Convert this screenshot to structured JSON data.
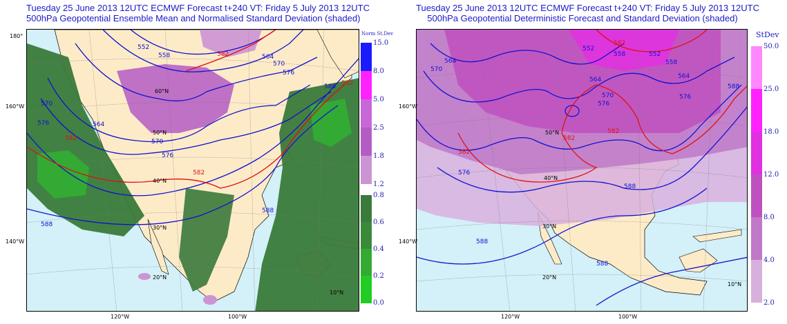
{
  "left_panel": {
    "title_line1": "Tuesday 25 June 2013 12UTC ECMWF Forecast t+240  VT: Friday 5 July 2013 12UTC",
    "title_line2": "500hPa Geopotential Ensemble Mean and Normalised Standard Deviation (shaded)",
    "contour_labels_blue": [
      "552",
      "558",
      "564",
      "570",
      "576",
      "588",
      "570",
      "564",
      "570",
      "576",
      "588",
      "588",
      "576"
    ],
    "contour_labels_red": [
      "582",
      "582",
      "582",
      "582"
    ],
    "lat_labels": [
      "50°N",
      "60°N",
      "40°N",
      "30°N",
      "20°N",
      "10°N"
    ],
    "lon_labels_left": [
      "180°",
      "160°W",
      "140°W"
    ],
    "lon_labels_bottom": [
      "120°W",
      "100°W"
    ],
    "colorbar_title": "Norm St.Dev",
    "colorbar_upper": [
      {
        "label": "15.0",
        "color": "#1a1aff"
      },
      {
        "label": "8.0",
        "color": "#ff22ff"
      },
      {
        "label": "5.0",
        "color": "#c868d8"
      },
      {
        "label": "2.5",
        "color": "#b45cc4"
      },
      {
        "label": "1.8",
        "color": "#cc94d4"
      },
      {
        "label": "1.2",
        "color": "#ffffff"
      }
    ],
    "colorbar_lower": [
      {
        "label": "0.8",
        "color": "#3a7a3a"
      },
      {
        "label": "0.6",
        "color": "#3a8a3a"
      },
      {
        "label": "0.4",
        "color": "#33aa33"
      },
      {
        "label": "0.2",
        "color": "#22cc22"
      },
      {
        "label": "0.0",
        "color": "#00ff00"
      }
    ]
  },
  "right_panel": {
    "title_line1": "Tuesday 25 June 2013 12UTC ECMWF Forecast t+240  VT: Friday 5 July 2013 12UTC",
    "title_line2": "500hPa Geopotential Deterministic Forecast and Standard Deviation (shaded)",
    "contour_labels_blue": [
      "552",
      "558",
      "564",
      "570",
      "576",
      "588",
      "570",
      "564",
      "552",
      "558",
      "564",
      "576",
      "588",
      "576",
      "588",
      "588"
    ],
    "contour_labels_red": [
      "582",
      "582",
      "582",
      "582"
    ],
    "lat_labels": [
      "50°N",
      "40°N",
      "30°N",
      "20°N",
      "10°N"
    ],
    "lon_labels_left": [
      "160°W",
      "140°W"
    ],
    "lon_labels_bottom": [
      "120°W",
      "100°W"
    ],
    "colorbar_title": "StDev",
    "colorbar": [
      {
        "label": "50.0",
        "color": "#ff88ff"
      },
      {
        "label": "25.0",
        "color": "#ff22ff"
      },
      {
        "label": "18.0",
        "color": "#e030e0"
      },
      {
        "label": "12.0",
        "color": "#c050c0"
      },
      {
        "label": "8.0",
        "color": "#c078c8"
      },
      {
        "label": "4.0",
        "color": "#d8b0de"
      },
      {
        "label": "2.0",
        "color": "#ffffff"
      }
    ]
  },
  "colors": {
    "ocean": "#d4f0f8",
    "land": "#fdebc8",
    "title_blue": "#1a1ac8",
    "contour_blue": "#1010d0",
    "contour_red": "#e01010"
  }
}
